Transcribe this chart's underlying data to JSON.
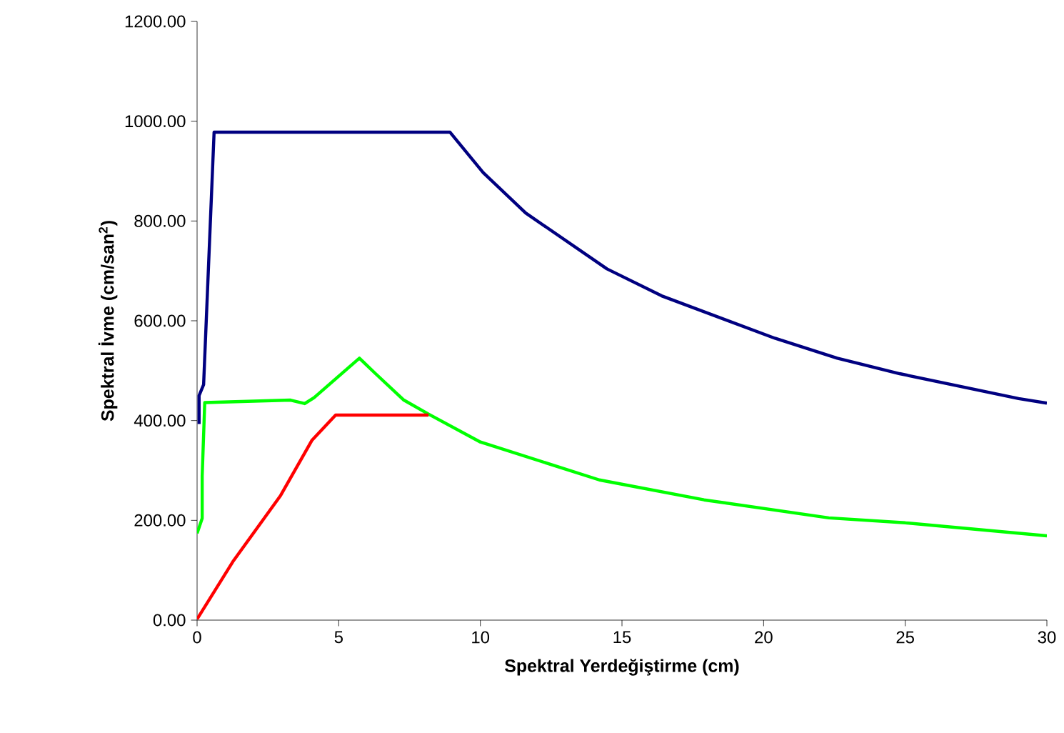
{
  "chart_data": {
    "type": "line",
    "xlabel": "Spektral Yerdeğiştirme (cm)",
    "ylabel": "Spektral İvme (cm/san$^{2}$)",
    "xlim": [
      0,
      30
    ],
    "xticks": [
      0,
      5,
      10,
      15,
      20,
      25,
      30
    ],
    "ylim": [
      0,
      1200
    ],
    "yticks": [
      {
        "value": 0,
        "label": "0.00"
      },
      {
        "value": 200,
        "label": "200.00"
      },
      {
        "value": 400,
        "label": "400.00"
      },
      {
        "value": 600,
        "label": "600.00"
      },
      {
        "value": 800,
        "label": "800.00"
      },
      {
        "value": 1000,
        "label": "1000.00"
      },
      {
        "value": 1200,
        "label": "1200.00"
      }
    ],
    "grid": false,
    "marker": "none",
    "line_style": "solid",
    "series": [
      {
        "color": "#000080",
        "x": [
          0.07,
          0.07,
          0.23,
          0.6,
          8.93,
          10.1,
          11.6,
          14.47,
          16.4,
          20.4,
          22.6,
          24.8,
          29.0,
          30
        ],
        "values": [
          393,
          450,
          472,
          978,
          978,
          897,
          816,
          704,
          650,
          565,
          525,
          494,
          444,
          435
        ]
      },
      {
        "color": "#00ff00",
        "x": [
          0,
          0.18,
          0.18,
          0.27,
          3.3,
          3.8,
          4.13,
          5.73,
          6.3,
          7.3,
          8.17,
          10.0,
          14.2,
          17.9,
          22.3,
          25,
          30
        ],
        "values": [
          174,
          204,
          289,
          436,
          441,
          434,
          446,
          525,
          494,
          441,
          413,
          357,
          281,
          241,
          205,
          195,
          169
        ]
      },
      {
        "color": "#ff0000",
        "x": [
          0,
          1.26,
          2.95,
          4.05,
          4.89,
          8.17
        ],
        "values": [
          2,
          117,
          250,
          360,
          411,
          411
        ]
      }
    ]
  }
}
